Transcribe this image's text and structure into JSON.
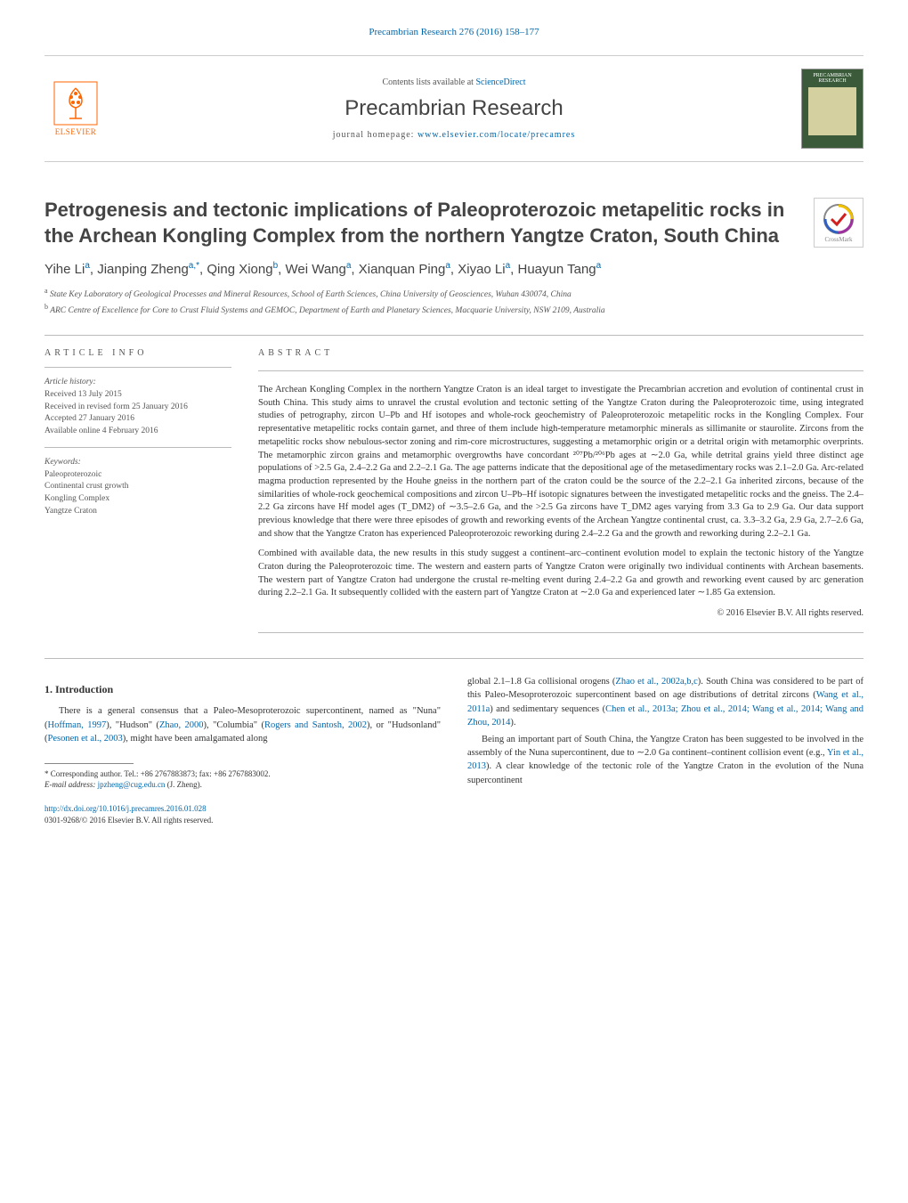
{
  "journal_ref": "Precambrian Research 276 (2016) 158–177",
  "header": {
    "elsevier_label": "ELSEVIER",
    "contents_prefix": "Contents lists available at ",
    "contents_link": "ScienceDirect",
    "journal_name": "Precambrian Research",
    "homepage_prefix": "journal homepage: ",
    "homepage_link": "www.elsevier.com/locate/precamres",
    "cover_text": "PRECAMBRIAN RESEARCH"
  },
  "crossmark_label": "CrossMark",
  "article": {
    "title": "Petrogenesis and tectonic implications of Paleoproterozoic metapelitic rocks in the Archean Kongling Complex from the northern Yangtze Craton, South China",
    "authors_html": "Yihe Li<sup>a</sup>, Jianping Zheng<sup>a,*</sup>, Qing Xiong<sup>b</sup>, Wei Wang<sup>a</sup>, Xianquan Ping<sup>a</sup>, Xiyao Li<sup>a</sup>, Huayun Tang<sup>a</sup>",
    "affiliations": [
      {
        "sup": "a",
        "text": "State Key Laboratory of Geological Processes and Mineral Resources, School of Earth Sciences, China University of Geosciences, Wuhan 430074, China"
      },
      {
        "sup": "b",
        "text": "ARC Centre of Excellence for Core to Crust Fluid Systems and GEMOC, Department of Earth and Planetary Sciences, Macquarie University, NSW 2109, Australia"
      }
    ]
  },
  "article_info": {
    "label": "ARTICLE INFO",
    "history_label": "Article history:",
    "received": "Received 13 July 2015",
    "revised": "Received in revised form 25 January 2016",
    "accepted": "Accepted 27 January 2016",
    "online": "Available online 4 February 2016",
    "keywords_label": "Keywords:",
    "keywords": [
      "Paleoproterozoic",
      "Continental crust growth",
      "Kongling Complex",
      "Yangtze Craton"
    ]
  },
  "abstract": {
    "label": "ABSTRACT",
    "p1": "The Archean Kongling Complex in the northern Yangtze Craton is an ideal target to investigate the Precambrian accretion and evolution of continental crust in South China. This study aims to unravel the crustal evolution and tectonic setting of the Yangtze Craton during the Paleoproterozoic time, using integrated studies of petrography, zircon U–Pb and Hf isotopes and whole-rock geochemistry of Paleoproterozoic metapelitic rocks in the Kongling Complex. Four representative metapelitic rocks contain garnet, and three of them include high-temperature metamorphic minerals as sillimanite or staurolite. Zircons from the metapelitic rocks show nebulous-sector zoning and rim-core microstructures, suggesting a metamorphic origin or a detrital origin with metamorphic overprints. The metamorphic zircon grains and metamorphic overgrowths have concordant ²⁰⁷Pb/²⁰⁶Pb ages at ∼2.0 Ga, while detrital grains yield three distinct age populations of >2.5 Ga, 2.4–2.2 Ga and 2.2–2.1 Ga. The age patterns indicate that the depositional age of the metasedimentary rocks was 2.1–2.0 Ga. Arc-related magma production represented by the Houhe gneiss in the northern part of the craton could be the source of the 2.2–2.1 Ga inherited zircons, because of the similarities of whole-rock geochemical compositions and zircon U–Pb–Hf isotopic signatures between the investigated metapelitic rocks and the gneiss. The 2.4–2.2 Ga zircons have Hf model ages (T_DM2) of ∼3.5–2.6 Ga, and the >2.5 Ga zircons have T_DM2 ages varying from 3.3 Ga to 2.9 Ga. Our data support previous knowledge that there were three episodes of growth and reworking events of the Archean Yangtze continental crust, ca. 3.3–3.2 Ga, 2.9 Ga, 2.7–2.6 Ga, and show that the Yangtze Craton has experienced Paleoproterozoic reworking during 2.4–2.2 Ga and the growth and reworking during 2.2–2.1 Ga.",
    "p2": "Combined with available data, the new results in this study suggest a continent–arc–continent evolution model to explain the tectonic history of the Yangtze Craton during the Paleoproterozoic time. The western and eastern parts of Yangtze Craton were originally two individual continents with Archean basements. The western part of Yangtze Craton had undergone the crustal re-melting event during 2.4–2.2 Ga and growth and reworking event caused by arc generation during 2.2–2.1 Ga. It subsequently collided with the eastern part of Yangtze Craton at ∼2.0 Ga and experienced later ∼1.85 Ga extension.",
    "copyright": "© 2016 Elsevier B.V. All rights reserved."
  },
  "body": {
    "heading": "1. Introduction",
    "col1_p1_prefix": "There is a general consensus that a Paleo-Mesoproterozoic supercontinent, named as \"Nuna\" (",
    "link_hoffman": "Hoffman, 1997",
    "col1_p1_mid1": "), \"Hudson\" (",
    "link_zhao2000": "Zhao, 2000",
    "col1_p1_mid2": "), \"Columbia\" (",
    "link_rogers": "Rogers and Santosh, 2002",
    "col1_p1_mid3": "), or \"Hudsonland\" (",
    "link_pesonen": "Pesonen et al., 2003",
    "col1_p1_suffix": "), might have been amalgamated along",
    "col2_p1_prefix": "global 2.1–1.8 Ga collisional orogens (",
    "link_zhao2002": "Zhao et al., 2002a,b,c",
    "col2_p1_mid1": "). South China was considered to be part of this Paleo-Mesoproterozoic supercontinent based on age distributions of detrital zircons (",
    "link_wang2011": "Wang et al., 2011a",
    "col2_p1_mid2": ") and sedimentary sequences (",
    "link_chen_zhou": "Chen et al., 2013a; Zhou et al., 2014; Wang et al., 2014; Wang and Zhou, 2014",
    "col2_p1_suffix": ").",
    "col2_p2_prefix": "Being an important part of South China, the Yangtze Craton has been suggested to be involved in the assembly of the Nuna supercontinent, due to ∼2.0 Ga continent–continent collision event (e.g., ",
    "link_yin": "Yin et al., 2013",
    "col2_p2_suffix": "). A clear knowledge of the tectonic role of the Yangtze Craton in the evolution of the Nuna supercontinent"
  },
  "footnote": {
    "corr_label": "* Corresponding author. Tel.: +86 2767883873; fax: +86 2767883002.",
    "email_label": "E-mail address: ",
    "email": "jpzheng@cug.edu.cn",
    "email_suffix": " (J. Zheng)."
  },
  "doi": {
    "link": "http://dx.doi.org/10.1016/j.precamres.2016.01.028",
    "issn_line": "0301-9268/© 2016 Elsevier B.V. All rights reserved."
  },
  "colors": {
    "link_color": "#0066aa",
    "elsevier_orange": "#ff6600",
    "cover_green": "#3a5a3a"
  }
}
